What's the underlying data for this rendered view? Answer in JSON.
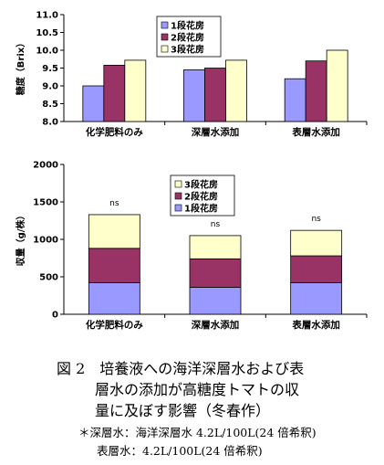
{
  "chart_data": [
    {
      "type": "bar",
      "ylabel": "糖度（Brix）",
      "ylim": [
        8.0,
        11.0
      ],
      "yticks": [
        8.0,
        8.5,
        9.0,
        9.5,
        10.0,
        10.5,
        11.0
      ],
      "categories": [
        "化学肥料のみ",
        "深層水添加",
        "表層水添加"
      ],
      "series": [
        {
          "name": "1段花房",
          "color": "#9999ff",
          "values": [
            9.0,
            9.45,
            9.2
          ]
        },
        {
          "name": "2段花房",
          "color": "#993366",
          "values": [
            9.58,
            9.5,
            9.7
          ]
        },
        {
          "name": "3段花房",
          "color": "#ffffcc",
          "values": [
            9.72,
            9.72,
            10.0
          ]
        }
      ],
      "legend": "top-left"
    },
    {
      "type": "stacked-bar",
      "ylabel": "収量（g/株）",
      "ylim": [
        0,
        2000
      ],
      "yticks": [
        0,
        500,
        1000,
        1500,
        2000
      ],
      "categories": [
        "化学肥料のみ",
        "深層水添加",
        "表層水添加"
      ],
      "series": [
        {
          "name": "1段花房",
          "color": "#9999ff",
          "values": [
            420,
            360,
            420
          ]
        },
        {
          "name": "2段花房",
          "color": "#993366",
          "values": [
            460,
            380,
            360
          ]
        },
        {
          "name": "3段花房",
          "color": "#ffffcc",
          "values": [
            450,
            310,
            340
          ]
        }
      ],
      "annotations": [
        "ns",
        "ns",
        "ns"
      ],
      "legend": "top-left"
    }
  ],
  "caption": {
    "line1": "図 2　培養液への海洋深層水および表",
    "line2": "層水の添加が高糖度トマトの収",
    "line3": "量に及ぼす影響（冬春作）"
  },
  "note": {
    "line1": "＊深層水：海洋深層水 4.2L/100L(24 倍希釈)",
    "line2": "表層水：4.2L/100L(24 倍希釈)"
  }
}
